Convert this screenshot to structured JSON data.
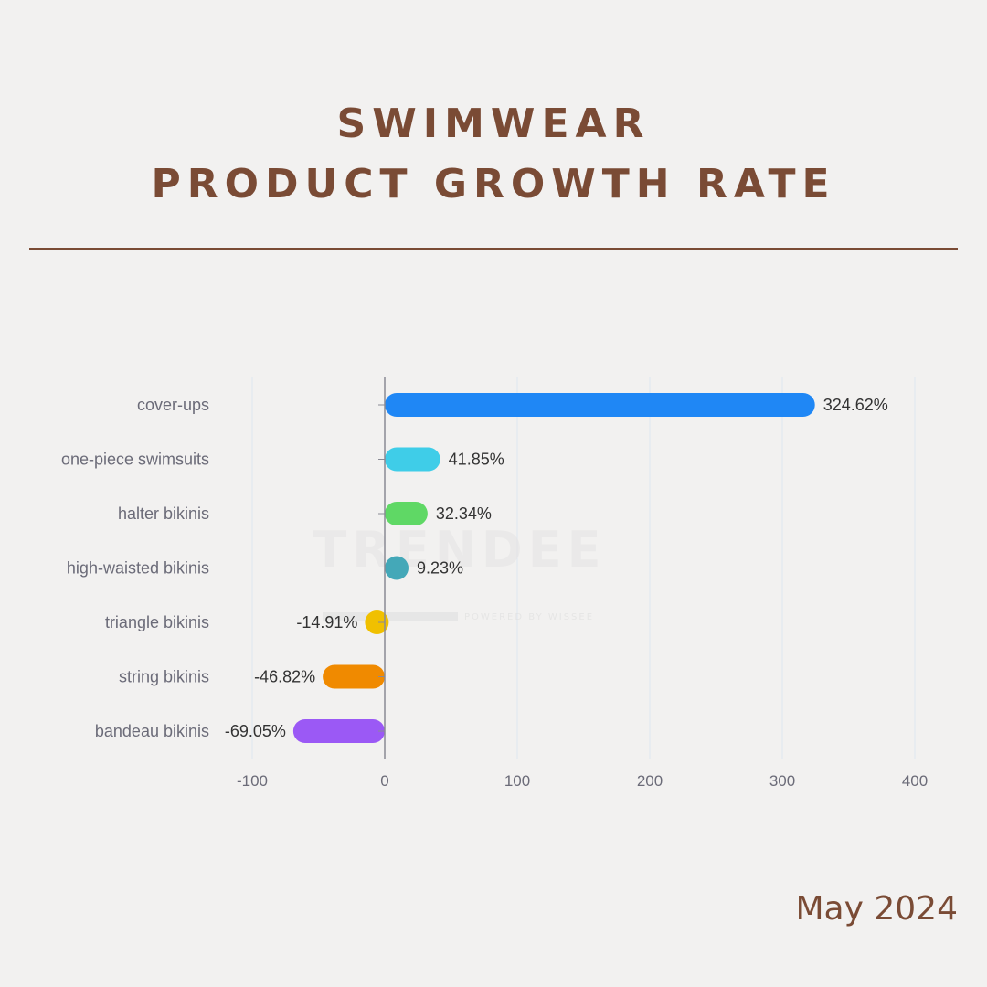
{
  "header": {
    "title_line1": "SWIMWEAR",
    "title_line2": "PRODUCT GROWTH RATE"
  },
  "footer": {
    "date": "May 2024"
  },
  "watermark": {
    "brand": "TRENDEE",
    "tagline": "POWERED BY WISSEE"
  },
  "chart_data": {
    "type": "bar",
    "orientation": "horizontal",
    "title": "",
    "xlabel": "",
    "ylabel": "",
    "xlim": [
      -100,
      400
    ],
    "x_ticks": [
      "-100",
      "0",
      "100",
      "200",
      "300",
      "400"
    ],
    "grid": true,
    "categories": [
      "cover-ups",
      "one-piece swimsuits",
      "halter bikinis",
      "high-waisted bikinis",
      "triangle bikinis",
      "string bikinis",
      "bandeau bikinis"
    ],
    "values": [
      324.62,
      41.85,
      32.34,
      9.23,
      -14.91,
      -46.82,
      -69.05
    ],
    "value_labels": [
      "324.62%",
      "41.85%",
      "32.34%",
      "9.23%",
      "-14.91%",
      "-46.82%",
      "-69.05%"
    ],
    "colors": [
      "#1f87f5",
      "#3fcde8",
      "#5fd865",
      "#44a8b8",
      "#f0c000",
      "#f08a00",
      "#9b59f5"
    ]
  }
}
